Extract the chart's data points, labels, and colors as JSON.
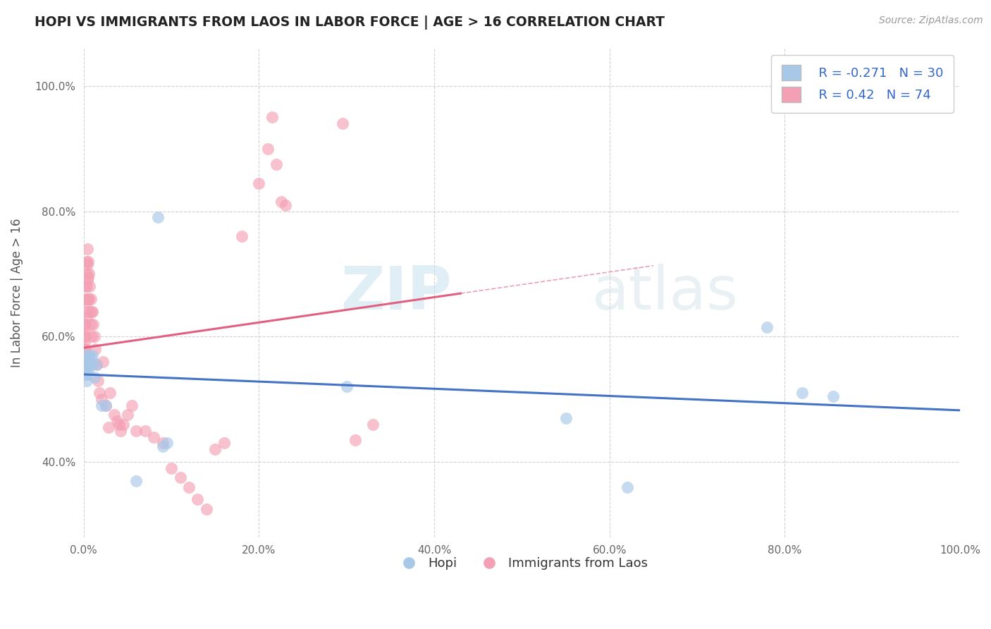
{
  "title": "HOPI VS IMMIGRANTS FROM LAOS IN LABOR FORCE | AGE > 16 CORRELATION CHART",
  "source": "Source: ZipAtlas.com",
  "ylabel": "In Labor Force | Age > 16",
  "xlim": [
    0.0,
    1.0
  ],
  "ylim": [
    0.28,
    1.06
  ],
  "x_ticks": [
    0.0,
    0.2,
    0.4,
    0.6,
    0.8,
    1.0
  ],
  "y_ticks": [
    0.4,
    0.6,
    0.8,
    1.0
  ],
  "x_tick_labels": [
    "0.0%",
    "20.0%",
    "40.0%",
    "60.0%",
    "80.0%",
    "100.0%"
  ],
  "y_tick_labels": [
    "40.0%",
    "60.0%",
    "80.0%",
    "100.0%"
  ],
  "hopi_R": -0.271,
  "hopi_N": 30,
  "laos_R": 0.42,
  "laos_N": 74,
  "hopi_color": "#a8c8e8",
  "laos_color": "#f4a0b4",
  "hopi_line_color": "#4472c4",
  "laos_line_color": "#e06080",
  "grid_color": "#cccccc",
  "background_color": "#ffffff",
  "hopi_scatter_x": [
    0.001,
    0.001,
    0.001,
    0.002,
    0.002,
    0.003,
    0.003,
    0.004,
    0.004,
    0.005,
    0.005,
    0.006,
    0.007,
    0.008,
    0.009,
    0.01,
    0.012,
    0.015,
    0.02,
    0.025,
    0.06,
    0.085,
    0.09,
    0.095,
    0.3,
    0.55,
    0.62,
    0.78,
    0.82,
    0.855
  ],
  "hopi_scatter_y": [
    0.57,
    0.555,
    0.545,
    0.56,
    0.54,
    0.555,
    0.53,
    0.555,
    0.545,
    0.565,
    0.54,
    0.57,
    0.555,
    0.565,
    0.555,
    0.57,
    0.535,
    0.555,
    0.49,
    0.49,
    0.37,
    0.79,
    0.425,
    0.43,
    0.52,
    0.47,
    0.36,
    0.615,
    0.51,
    0.505
  ],
  "laos_scatter_x": [
    0.001,
    0.001,
    0.001,
    0.001,
    0.001,
    0.001,
    0.001,
    0.001,
    0.002,
    0.002,
    0.002,
    0.002,
    0.002,
    0.002,
    0.003,
    0.003,
    0.003,
    0.003,
    0.003,
    0.004,
    0.004,
    0.004,
    0.004,
    0.005,
    0.005,
    0.005,
    0.006,
    0.006,
    0.007,
    0.007,
    0.008,
    0.008,
    0.009,
    0.009,
    0.01,
    0.011,
    0.012,
    0.013,
    0.015,
    0.016,
    0.018,
    0.02,
    0.022,
    0.025,
    0.028,
    0.03,
    0.035,
    0.038,
    0.04,
    0.042,
    0.045,
    0.05,
    0.055,
    0.06,
    0.07,
    0.08,
    0.09,
    0.1,
    0.11,
    0.12,
    0.13,
    0.14,
    0.15,
    0.16,
    0.18,
    0.2,
    0.21,
    0.215,
    0.22,
    0.225,
    0.23,
    0.295,
    0.31,
    0.33
  ],
  "laos_scatter_y": [
    0.62,
    0.61,
    0.6,
    0.59,
    0.58,
    0.57,
    0.56,
    0.55,
    0.68,
    0.66,
    0.64,
    0.62,
    0.6,
    0.58,
    0.72,
    0.7,
    0.68,
    0.655,
    0.63,
    0.74,
    0.715,
    0.69,
    0.66,
    0.72,
    0.695,
    0.66,
    0.7,
    0.66,
    0.68,
    0.64,
    0.66,
    0.62,
    0.64,
    0.6,
    0.64,
    0.62,
    0.6,
    0.58,
    0.555,
    0.53,
    0.51,
    0.5,
    0.56,
    0.49,
    0.455,
    0.51,
    0.475,
    0.465,
    0.46,
    0.45,
    0.46,
    0.475,
    0.49,
    0.45,
    0.45,
    0.44,
    0.43,
    0.39,
    0.375,
    0.36,
    0.34,
    0.325,
    0.42,
    0.43,
    0.76,
    0.845,
    0.9,
    0.95,
    0.875,
    0.815,
    0.81,
    0.94,
    0.435,
    0.46
  ]
}
